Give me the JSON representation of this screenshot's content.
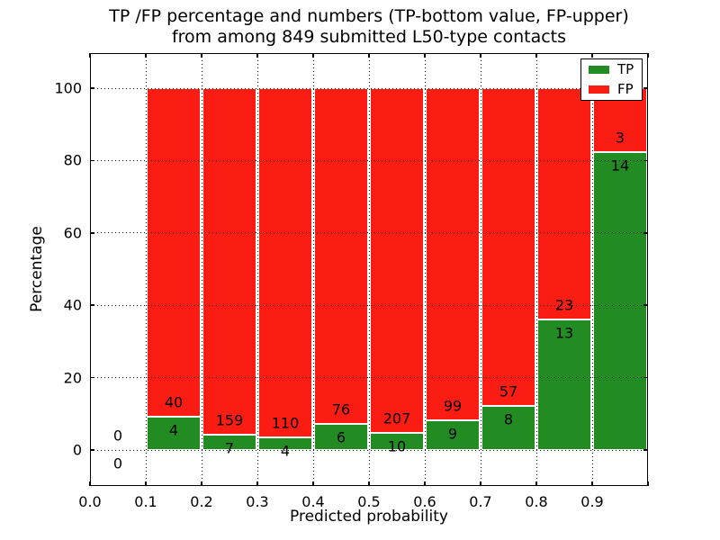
{
  "chart_data": {
    "type": "bar",
    "stacked": true,
    "title_line1": "TP /FP percentage and numbers (TP-bottom value, FP-upper)",
    "title_line2": "from among 849 submitted L50-type contacts",
    "xlabel": "Predicted probability",
    "ylabel": "Percentage",
    "xlim": [
      0.0,
      1.0
    ],
    "ylim": [
      -10,
      110
    ],
    "xticks": [
      "0.0",
      "0.1",
      "0.2",
      "0.3",
      "0.4",
      "0.5",
      "0.6",
      "0.7",
      "0.8",
      "0.9"
    ],
    "yticks": [
      0,
      20,
      40,
      60,
      80,
      100
    ],
    "grid": "dotted, drawn above bars",
    "bin_edges": [
      0.0,
      0.1,
      0.2,
      0.3,
      0.4,
      0.5,
      0.6,
      0.7,
      0.8,
      0.9,
      1.0
    ],
    "categories": [
      "0.0-0.1",
      "0.1-0.2",
      "0.2-0.3",
      "0.3-0.4",
      "0.4-0.5",
      "0.5-0.6",
      "0.6-0.7",
      "0.7-0.8",
      "0.8-0.9",
      "0.9-1.0"
    ],
    "bar_heights_note": "each bin stacked to 100%; green TP share = tp/(tp+fp)*100",
    "total_submitted": 849,
    "series": [
      {
        "name": "TP",
        "color": "#228b22",
        "counts": [
          0,
          4,
          7,
          4,
          6,
          10,
          9,
          8,
          13,
          14
        ]
      },
      {
        "name": "FP",
        "color": "#fb1d14",
        "counts": [
          0,
          40,
          159,
          110,
          76,
          207,
          99,
          57,
          23,
          3
        ]
      }
    ],
    "legend": {
      "position": "upper right",
      "entries": [
        {
          "label": "TP",
          "color": "#228b22"
        },
        {
          "label": "FP",
          "color": "#fb1d14"
        }
      ]
    }
  }
}
